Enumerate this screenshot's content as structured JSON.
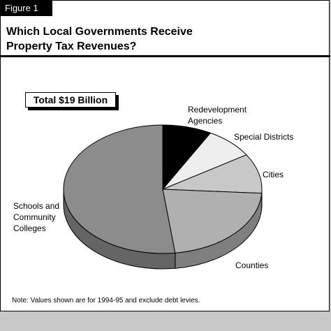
{
  "figure_tab": "Figure 1",
  "title_line1": "Which Local Governments Receive",
  "title_line2": "Property Tax Revenues?",
  "total_label": "Total $19 Billion",
  "note": "Note: Values shown are for 1994-95 and exclude debt levies.",
  "colors": {
    "redevelopment": "#000000",
    "special_districts": "#eeeeee",
    "cities": "#c8c8c8",
    "counties": "#b0b0b0",
    "schools": "#8c8c8c"
  },
  "chart_data": {
    "type": "pie",
    "title": "Which Local Governments Receive Property Tax Revenues?",
    "subtitle": "Total $19 Billion",
    "slices": [
      {
        "label": "Redevelopment Agencies",
        "value": 8,
        "color": "#000000"
      },
      {
        "label": "Special Districts",
        "value": 8,
        "color": "#eeeeee"
      },
      {
        "label": "Cities",
        "value": 10,
        "color": "#c8c8c8"
      },
      {
        "label": "Counties",
        "value": 22,
        "color": "#b0b0b0"
      },
      {
        "label": "Schools and Community Colleges",
        "value": 52,
        "color": "#8c8c8c"
      }
    ]
  }
}
